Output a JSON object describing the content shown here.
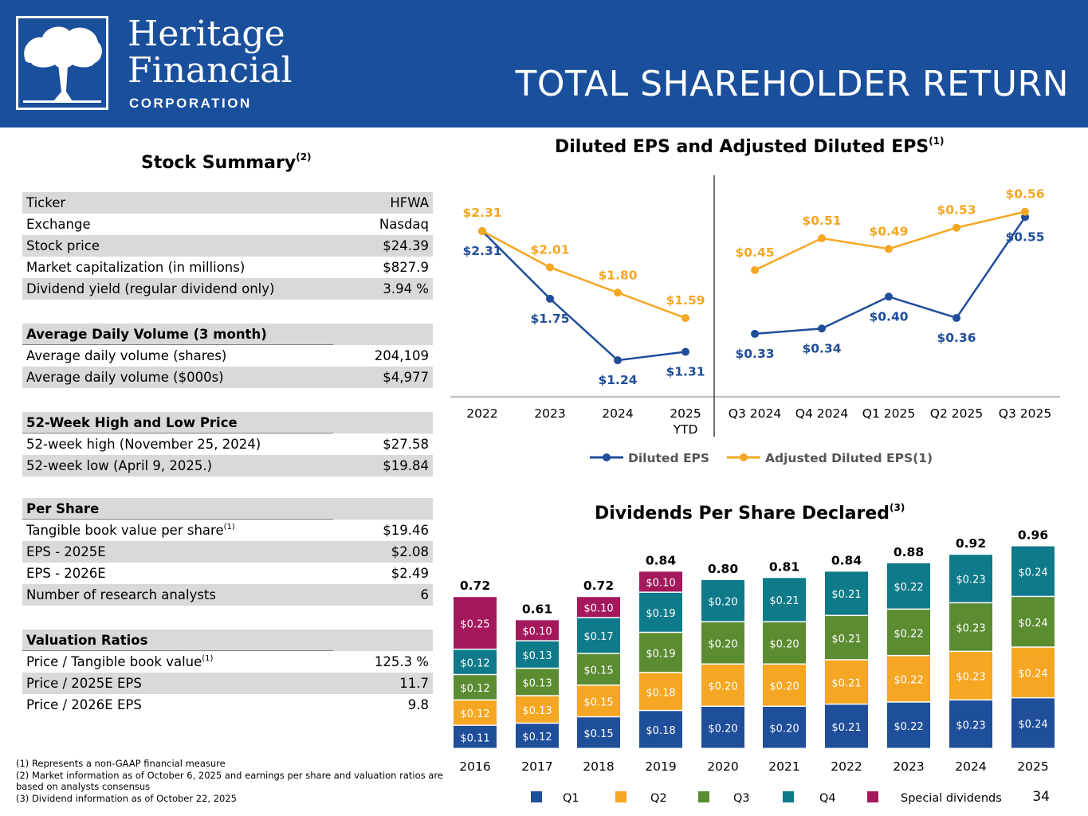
{
  "header": {
    "logo_line1": "Heritage",
    "logo_line2": "Financial",
    "logo_line3": "CORPORATION",
    "title": "TOTAL SHAREHOLDER RETURN"
  },
  "brand_colors": {
    "banner": "#1a4f9c",
    "diluted": "#1f4e9a",
    "adjusted": "#f5a623",
    "q1": "#1f4e9a",
    "q2": "#f5a623",
    "q3": "#5b8c32",
    "q4": "#0e7a8a",
    "special": "#a3195b"
  },
  "stock_summary": {
    "title": "Stock Summary",
    "title_sup": "(2)",
    "rows": [
      {
        "label": "Ticker",
        "value": "HFWA"
      },
      {
        "label": "Exchange",
        "value": "Nasdaq"
      },
      {
        "label": "Stock price",
        "value": "$24.39"
      },
      {
        "label": "Market capitalization (in millions)",
        "value": "$827.9"
      },
      {
        "label": "Dividend yield (regular dividend only)",
        "value": "3.94 %"
      }
    ],
    "volume_head": "Average Daily Volume (3 month)",
    "volume_rows": [
      {
        "label": "Average daily volume (shares)",
        "value": "204,109"
      },
      {
        "label": "Average daily volume ($000s)",
        "value": "$4,977"
      }
    ],
    "hilo_head": "52-Week High and Low Price",
    "hilo_rows": [
      {
        "label": "52-week high (November 25, 2024)",
        "value": "$27.58"
      },
      {
        "label": "52-week low (April 9, 2025.)",
        "value": "$19.84"
      }
    ],
    "pershare_head": "Per Share",
    "pershare_rows": [
      {
        "label": "Tangible book value per share",
        "sup": "(1)",
        "value": "$19.46"
      },
      {
        "label": "EPS - 2025E",
        "value": "$2.08"
      },
      {
        "label": "EPS - 2026E",
        "value": "$2.49"
      },
      {
        "label": "Number of research analysts",
        "value": "6"
      }
    ],
    "valuation_head": "Valuation Ratios",
    "valuation_rows": [
      {
        "label": "Price / Tangible book value",
        "sup": "(1)",
        "value": "125.3 %"
      },
      {
        "label": "Price / 2025E EPS",
        "value": "11.7"
      },
      {
        "label": "Price / 2026E EPS",
        "value": "9.8"
      }
    ]
  },
  "footnotes": {
    "f1": "(1) Represents a non-GAAP financial measure",
    "f2": "(2) Market information as of October 6, 2025 and earnings per share and valuation ratios are based on analysts consensus",
    "f3": "(3) Dividend information as of October 22, 2025"
  },
  "page_number": "34",
  "chart_data": [
    {
      "type": "line",
      "title": "Diluted EPS and Adjusted Diluted EPS",
      "title_sup": "(1)",
      "categories": [
        "2022",
        "2023",
        "2024",
        "2025 YTD",
        "Q3 2024",
        "Q4 2024",
        "Q1 2025",
        "Q2 2025",
        "Q3 2025"
      ],
      "groups": [
        {
          "categories": [
            "2022",
            "2023",
            "2024",
            "2025\nYTD"
          ],
          "series": [
            {
              "name": "Diluted EPS",
              "values": [
                2.31,
                1.75,
                1.24,
                1.31
              ],
              "labels": [
                "$2.31",
                "$1.75",
                "$1.24",
                "$1.31"
              ]
            },
            {
              "name": "Adjusted Diluted EPS(1)",
              "values": [
                2.31,
                2.01,
                1.8,
                1.59
              ],
              "labels": [
                "$2.31",
                "$2.01",
                "$1.80",
                "$1.59"
              ]
            }
          ]
        },
        {
          "categories": [
            "Q3 2024",
            "Q4 2024",
            "Q1 2025",
            "Q2 2025",
            "Q3 2025"
          ],
          "series": [
            {
              "name": "Diluted EPS",
              "values": [
                0.33,
                0.34,
                0.4,
                0.36,
                0.55
              ],
              "labels": [
                "$0.33",
                "$0.34",
                "$0.40",
                "$0.36",
                "$0.55"
              ]
            },
            {
              "name": "Adjusted Diluted EPS(1)",
              "values": [
                0.45,
                0.51,
                0.49,
                0.53,
                0.56
              ],
              "labels": [
                "$0.45",
                "$0.51",
                "$0.49",
                "$0.53",
                "$0.56"
              ]
            }
          ]
        }
      ],
      "legend": [
        "Diluted EPS",
        "Adjusted Diluted EPS(1)"
      ],
      "legend_position": "bottom",
      "grid": false
    },
    {
      "type": "bar",
      "stacked": true,
      "title": "Dividends Per Share Declared",
      "title_sup": "(3)",
      "categories": [
        "2016",
        "2017",
        "2018",
        "2019",
        "2020",
        "2021",
        "2022",
        "2023",
        "2024",
        "2025"
      ],
      "series": [
        {
          "name": "Q1",
          "values": [
            0.11,
            0.12,
            0.15,
            0.18,
            0.2,
            0.2,
            0.21,
            0.22,
            0.23,
            0.24
          ]
        },
        {
          "name": "Q2",
          "values": [
            0.12,
            0.13,
            0.15,
            0.18,
            0.2,
            0.2,
            0.21,
            0.22,
            0.23,
            0.24
          ]
        },
        {
          "name": "Q3",
          "values": [
            0.12,
            0.13,
            0.15,
            0.19,
            0.2,
            0.2,
            0.21,
            0.22,
            0.23,
            0.24
          ]
        },
        {
          "name": "Q4",
          "values": [
            0.12,
            0.13,
            0.17,
            0.19,
            0.2,
            0.21,
            0.21,
            0.22,
            0.23,
            0.24
          ]
        },
        {
          "name": "Special dividends",
          "values": [
            0.25,
            0.1,
            0.1,
            0.1,
            0,
            0,
            0,
            0,
            0,
            0
          ]
        }
      ],
      "totals": [
        "0.72",
        "0.61",
        "0.72",
        "0.84",
        "0.80",
        "0.81",
        "0.84",
        "0.88",
        "0.92",
        "0.96"
      ],
      "legend": [
        "Q1",
        "Q2",
        "Q3",
        "Q4",
        "Special dividends"
      ],
      "legend_position": "bottom"
    }
  ]
}
